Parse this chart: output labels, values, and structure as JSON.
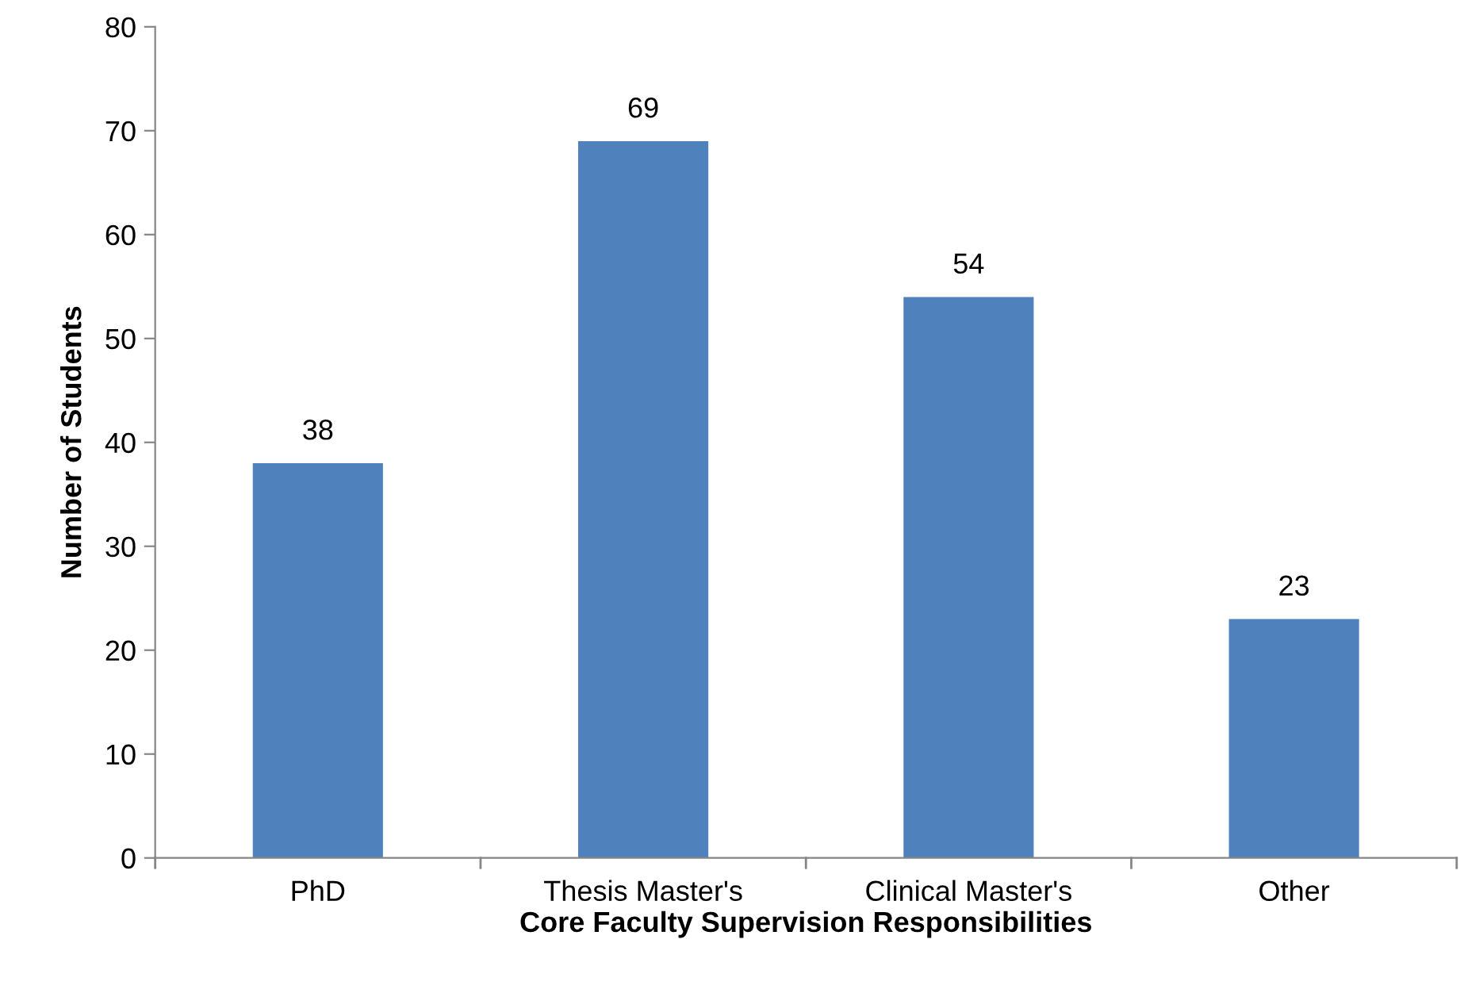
{
  "chart_data": {
    "type": "bar",
    "xlabel": "Core Faculty Supervision Responsibilities",
    "ylabel": "Number of Students",
    "categories": [
      "PhD",
      "Thesis Master's",
      "Clinical Master's",
      "Other"
    ],
    "values": [
      38,
      69,
      54,
      23
    ],
    "color": "#4f81bd",
    "ylim": [
      0,
      80
    ],
    "yticks": [
      0,
      10,
      20,
      30,
      40,
      50,
      60,
      70,
      80
    ],
    "grid": false,
    "data_labels": true
  }
}
